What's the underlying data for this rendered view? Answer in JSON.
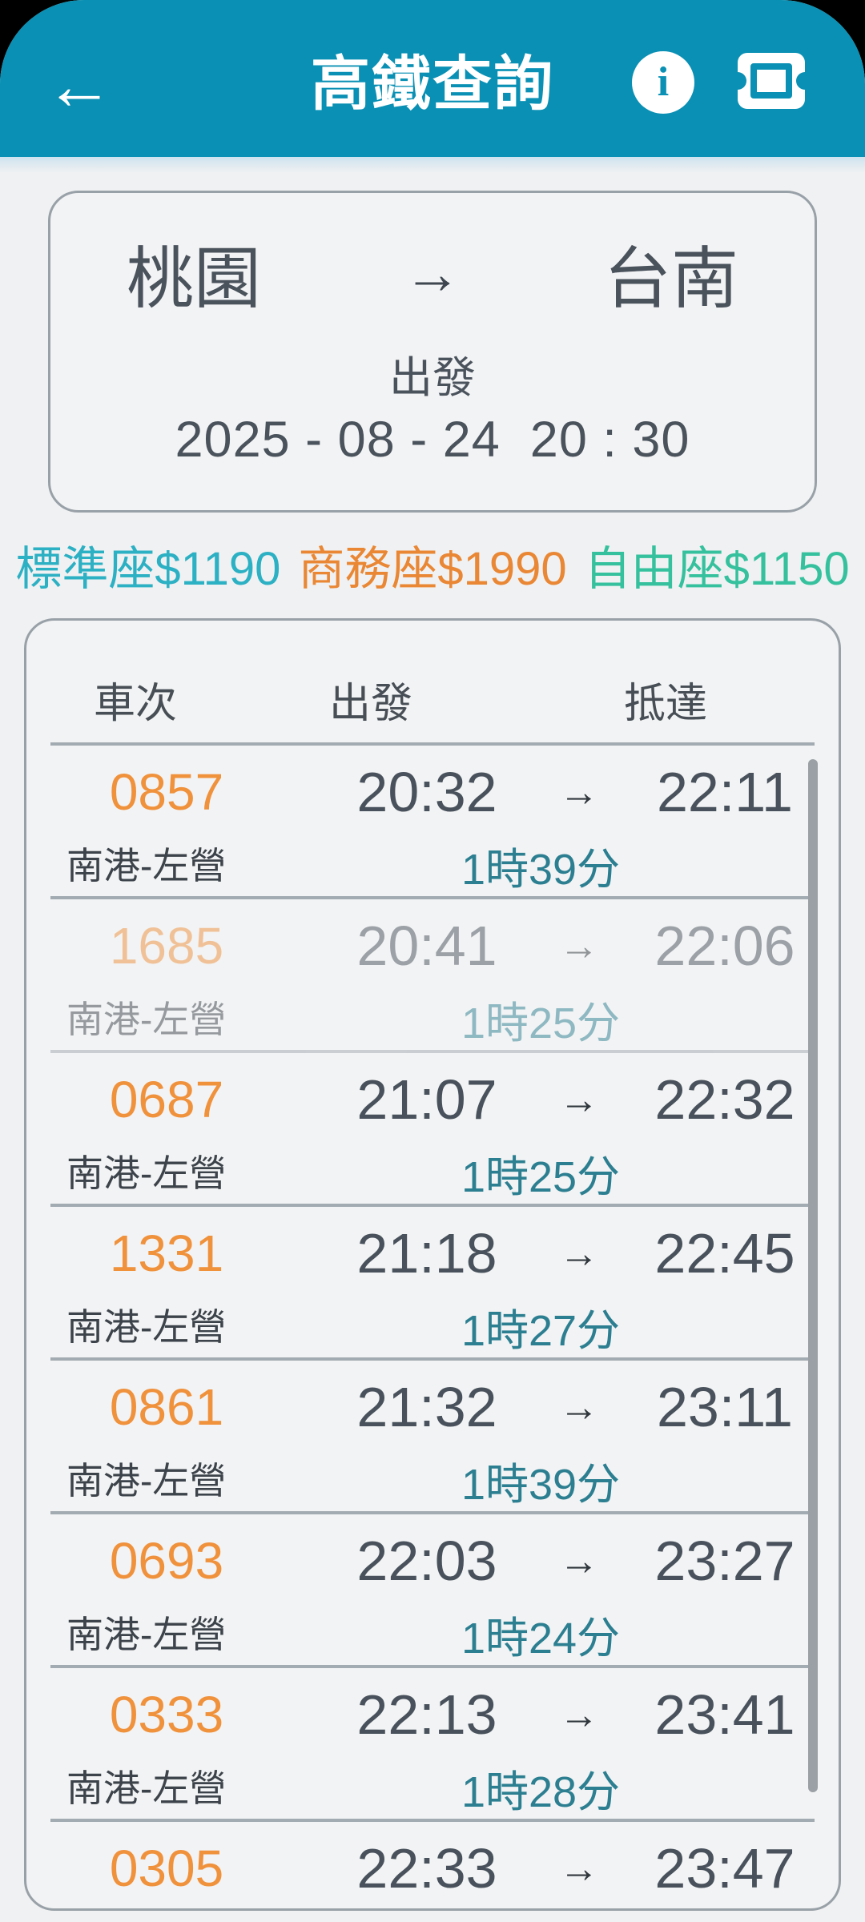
{
  "header": {
    "title": "高鐵查詢",
    "back_glyph": "←",
    "info_glyph": "i"
  },
  "route_card": {
    "origin": "桃園",
    "arrow": "→",
    "destination": "台南",
    "depart_label": "出發",
    "datetime": "2025 - 08 - 24  20 : 30"
  },
  "fares": [
    {
      "label": "標準座$1190",
      "color": "#2cb0c3"
    },
    {
      "label": "商務座$1990",
      "color": "#e98734"
    },
    {
      "label": "自由座$1150",
      "color": "#35c19d"
    }
  ],
  "table": {
    "headers": {
      "train": "車次",
      "depart": "出發",
      "arrive": "抵達"
    },
    "row_arrow": "→",
    "rows": [
      {
        "train": "0857",
        "dep": "20:32",
        "arr": "22:11",
        "route": "南港-左營",
        "duration": "1時39分",
        "faded": false
      },
      {
        "train": "1685",
        "dep": "20:41",
        "arr": "22:06",
        "route": "南港-左營",
        "duration": "1時25分",
        "faded": true
      },
      {
        "train": "0687",
        "dep": "21:07",
        "arr": "22:32",
        "route": "南港-左營",
        "duration": "1時25分",
        "faded": false
      },
      {
        "train": "1331",
        "dep": "21:18",
        "arr": "22:45",
        "route": "南港-左營",
        "duration": "1時27分",
        "faded": false
      },
      {
        "train": "0861",
        "dep": "21:32",
        "arr": "23:11",
        "route": "南港-左營",
        "duration": "1時39分",
        "faded": false
      },
      {
        "train": "0693",
        "dep": "22:03",
        "arr": "23:27",
        "route": "南港-左營",
        "duration": "1時24分",
        "faded": false
      },
      {
        "train": "0333",
        "dep": "22:13",
        "arr": "23:41",
        "route": "南港-左營",
        "duration": "1時28分",
        "faded": false
      },
      {
        "train": "0305",
        "dep": "22:33",
        "arr": "23:47",
        "route": "",
        "duration": "",
        "faded": false
      }
    ]
  },
  "colors": {
    "appbar": "#0a90b4",
    "train_number": "#f0913c",
    "duration": "#2c7f91"
  }
}
